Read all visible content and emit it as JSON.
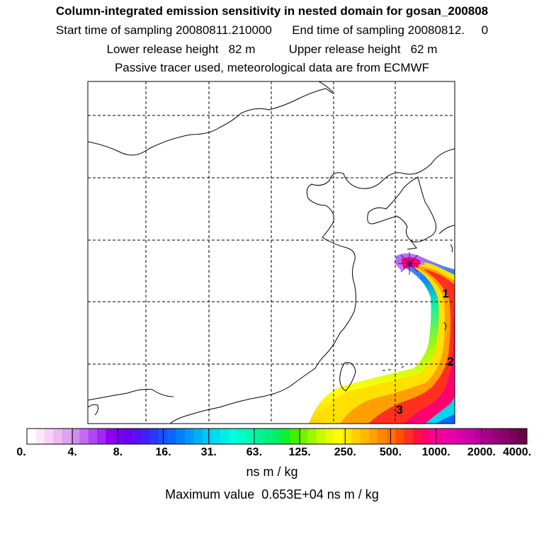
{
  "header": {
    "title": "Column-integrated emission sensitivity in nested domain for gosan_200808",
    "sampling_line": "Start time of sampling 20080811.210000      End time of sampling 20080812.     0",
    "release_line": "Lower release height   82 m          Upper release height   62 m",
    "tracer_line": "Passive tracer used, meteorological data are from ECMWF"
  },
  "map": {
    "day_labels": [
      "1",
      "2",
      "3"
    ],
    "release_marker": "release-site-star",
    "colors": {
      "frame": "#000000",
      "coast": "#000000",
      "grid": "#000000"
    }
  },
  "colorbar": {
    "tick_labels": [
      "0.",
      "4.",
      "8.",
      "16.",
      "31.",
      "63.",
      "125.",
      "250.",
      "500.",
      "1000.",
      "2000.",
      "4000."
    ],
    "colors": [
      "#ffffff",
      "#fbe9fb",
      "#f6d2f7",
      "#efbaf3",
      "#e0a3ef",
      "#cf8cf2",
      "#c06cf3",
      "#b048f4",
      "#a326f5",
      "#9000f0",
      "#7b00f0",
      "#6a00f3",
      "#5810f5",
      "#4020f8",
      "#2838fa",
      "#1850fb",
      "#0868fb",
      "#0080fa",
      "#0098f8",
      "#00b0f5",
      "#00c8f0",
      "#00dcec",
      "#00eee6",
      "#00ffe0",
      "#00ffc8",
      "#00f8b0",
      "#00f498",
      "#00f080",
      "#00f060",
      "#10f030",
      "#40f000",
      "#70f400",
      "#a0f800",
      "#c8fa00",
      "#e8fc00",
      "#ffff00",
      "#ffe800",
      "#ffd000",
      "#ffb800",
      "#ffa000",
      "#ff8800",
      "#ff7000",
      "#ff5000",
      "#ff3020",
      "#ff1040",
      "#ff0070",
      "#f80090",
      "#f000a0",
      "#e800a8",
      "#d800a8",
      "#c800a8",
      "#b80098",
      "#a80088",
      "#980078",
      "#880068",
      "#780058",
      "#680048"
    ],
    "units": "ns m / kg",
    "max_label": "Maximum value  0.653E+04 ns m / kg"
  }
}
